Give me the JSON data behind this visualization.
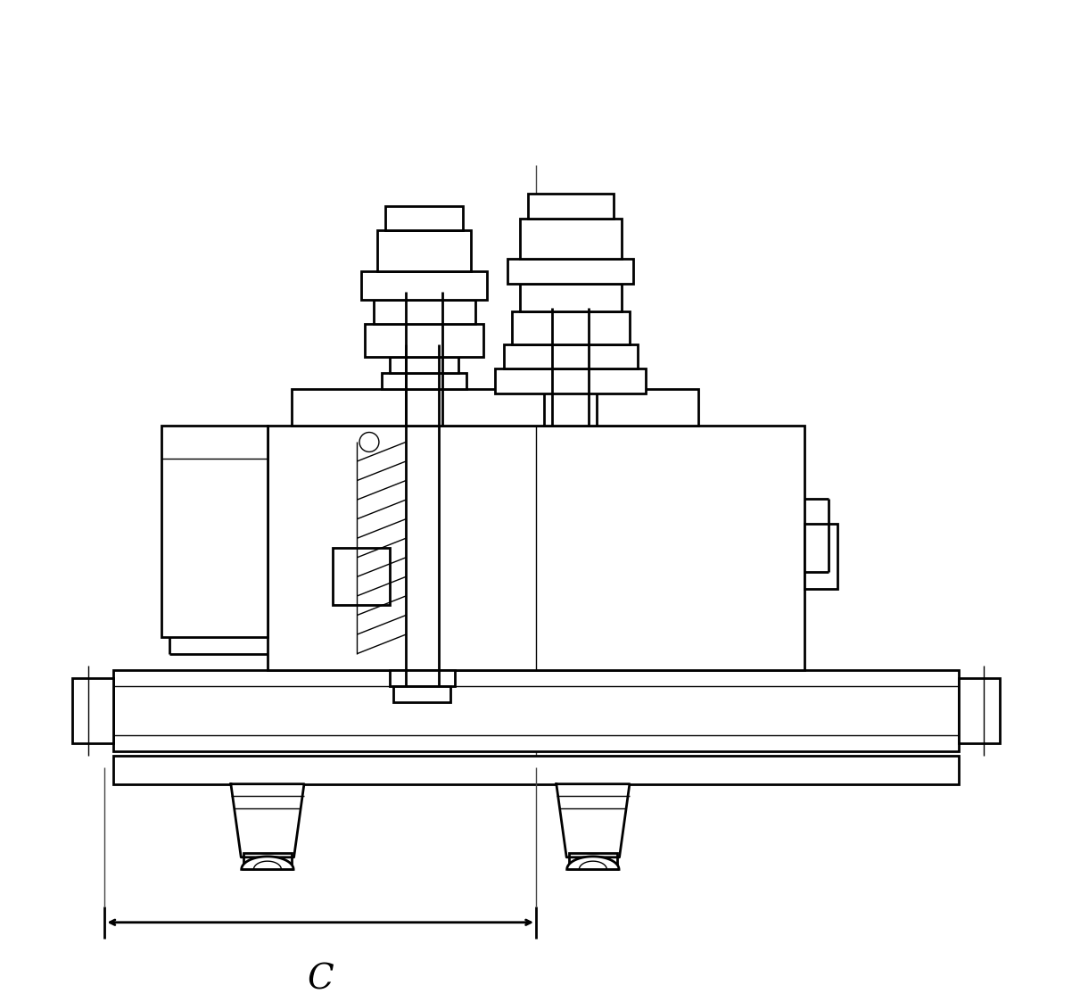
{
  "bg_color": "#ffffff",
  "line_color": "#000000",
  "lw": 2.0,
  "lw_thin": 1.0,
  "lw_thick": 2.5,
  "label_C": "C",
  "label_fontsize": 28,
  "figsize": [
    12.02,
    11.23
  ],
  "dpi": 100,
  "xlim": [
    0,
    120
  ],
  "ylim": [
    0,
    120
  ]
}
